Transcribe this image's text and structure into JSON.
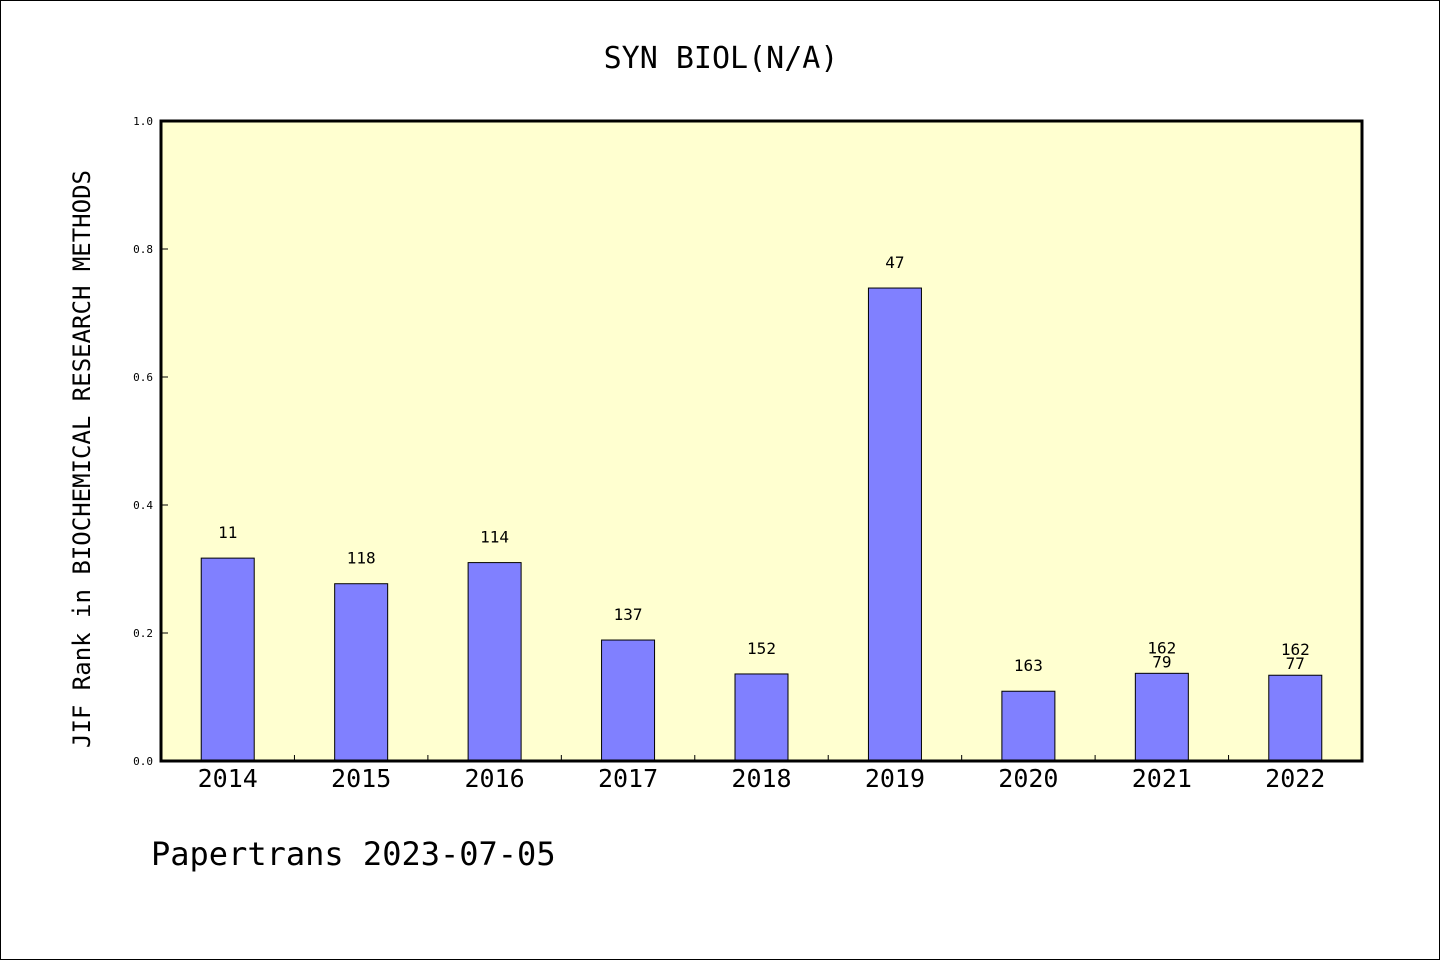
{
  "chart_data": {
    "type": "bar",
    "title": "SYN BIOL(N/A)",
    "xlabel": "",
    "ylabel": "JIF Rank in BIOCHEMICAL RESEARCH METHODS",
    "ylim": [
      0,
      1.0
    ],
    "yticks": [
      "0.0",
      "0.2",
      "0.4",
      "0.6",
      "0.8",
      "1.0"
    ],
    "grid": false,
    "legend": "none",
    "categories": [
      "2014",
      "2015",
      "2016",
      "2017",
      "2018",
      "2019",
      "2020",
      "2021",
      "2022"
    ],
    "values": [
      0.317,
      0.277,
      0.31,
      0.189,
      0.136,
      0.739,
      0.109,
      0.137,
      0.134
    ],
    "bar_labels": [
      [
        "11"
      ],
      [
        "118"
      ],
      [
        "114"
      ],
      [
        "137"
      ],
      [
        "152"
      ],
      [
        "47"
      ],
      [
        "163"
      ],
      [
        "162",
        "79"
      ],
      [
        "162",
        "77"
      ]
    ],
    "colors": {
      "bar": "#8080ff",
      "plot_background": "#ffffd0",
      "axis": "#000000"
    }
  },
  "footer": "Papertrans 2023-07-05"
}
